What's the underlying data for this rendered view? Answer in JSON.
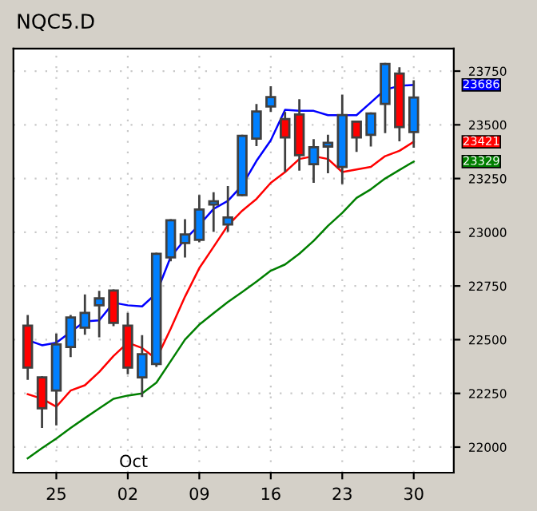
{
  "chart_data": {
    "type": "candlestick",
    "title": "NQC5.D",
    "categories": [
      null,
      null,
      "25",
      null,
      null,
      null,
      null,
      "02",
      null,
      null,
      null,
      null,
      "09",
      null,
      null,
      null,
      null,
      "16",
      null,
      null,
      null,
      null,
      "23",
      null,
      null,
      null,
      null,
      "30"
    ],
    "ohlc": [
      [
        22565,
        22610,
        22318,
        22370
      ],
      [
        22325,
        22325,
        22094,
        22181
      ],
      [
        22263,
        22523,
        22106,
        22478
      ],
      [
        22466,
        22610,
        22424,
        22603
      ],
      [
        22556,
        22705,
        22528,
        22625
      ],
      [
        22660,
        22722,
        22516,
        22692
      ],
      [
        22729,
        22729,
        22568,
        22578
      ],
      [
        22565,
        22620,
        22344,
        22370
      ],
      [
        22325,
        22516,
        22238,
        22432
      ],
      [
        22387,
        22900,
        22379,
        22900
      ],
      [
        22883,
        23056,
        22870,
        23056
      ],
      [
        22950,
        23056,
        22888,
        22990
      ],
      [
        22965,
        23168,
        22958,
        23106
      ],
      [
        23129,
        23181,
        23007,
        23144
      ],
      [
        23036,
        23210,
        23007,
        23069
      ],
      [
        23173,
        23449,
        23173,
        23449
      ],
      [
        23436,
        23592,
        23406,
        23562
      ],
      [
        23585,
        23674,
        23565,
        23629
      ],
      [
        23527,
        23555,
        23285,
        23441
      ],
      [
        23548,
        23614,
        23292,
        23359
      ],
      [
        23317,
        23428,
        23235,
        23396
      ],
      [
        23399,
        23449,
        23280,
        23416
      ],
      [
        23304,
        23635,
        23230,
        23545
      ],
      [
        23515,
        23515,
        23379,
        23441
      ],
      [
        23453,
        23553,
        23404,
        23553
      ],
      [
        23597,
        23783,
        23466,
        23783
      ],
      [
        23739,
        23763,
        23428,
        23490
      ],
      [
        23466,
        23702,
        23399,
        23627
      ]
    ],
    "colors": [
      "#ff0000",
      "#ff0000",
      "#0080ff",
      "#0080ff",
      "#0080ff",
      "#0080ff",
      "#ff0000",
      "#ff0000",
      "#0080ff",
      "#0080ff",
      "#0080ff",
      "#0080ff",
      "#0080ff",
      "#0080ff",
      "#0080ff",
      "#0080ff",
      "#0080ff",
      "#0080ff",
      "#ff0000",
      "#ff0000",
      "#0080ff",
      "#0080ff",
      "#0080ff",
      "#ff0000",
      "#0080ff",
      "#0080ff",
      "#ff0000",
      "#0080ff"
    ],
    "series": [
      {
        "type": "line",
        "color": "#0000ff",
        "values": [
          22498,
          22474,
          22486,
          22536,
          22585,
          22590,
          22672,
          22660,
          22655,
          22716,
          22885,
          22967,
          23034,
          23109,
          23146,
          23218,
          23332,
          23428,
          23570,
          23565,
          23565,
          23545,
          23545,
          23545,
          23604,
          23664,
          23681,
          23686
        ]
      },
      {
        "type": "line",
        "color": "#ff0000",
        "values": [
          22246,
          22225,
          22188,
          22263,
          22288,
          22350,
          22424,
          22486,
          22461,
          22411,
          22551,
          22700,
          22833,
          22932,
          23032,
          23100,
          23155,
          23230,
          23280,
          23341,
          23354,
          23341,
          23280,
          23292,
          23304,
          23354,
          23379,
          23421
        ]
      },
      {
        "type": "line",
        "color": "#007f00",
        "values": [
          21948,
          21995,
          22040,
          22089,
          22135,
          22180,
          22225,
          22240,
          22250,
          22300,
          22400,
          22500,
          22570,
          22623,
          22675,
          22722,
          22770,
          22821,
          22850,
          22900,
          22960,
          23030,
          23090,
          23160,
          23200,
          23250,
          23290,
          23329
        ]
      }
    ],
    "annotations": [
      "23686",
      "23421",
      "23329",
      "Oct"
    ],
    "ylim": [
      21881,
      23855
    ],
    "yticks": [
      22000,
      22250,
      22500,
      22750,
      23000,
      23250,
      23500,
      23750
    ],
    "grid": true
  }
}
